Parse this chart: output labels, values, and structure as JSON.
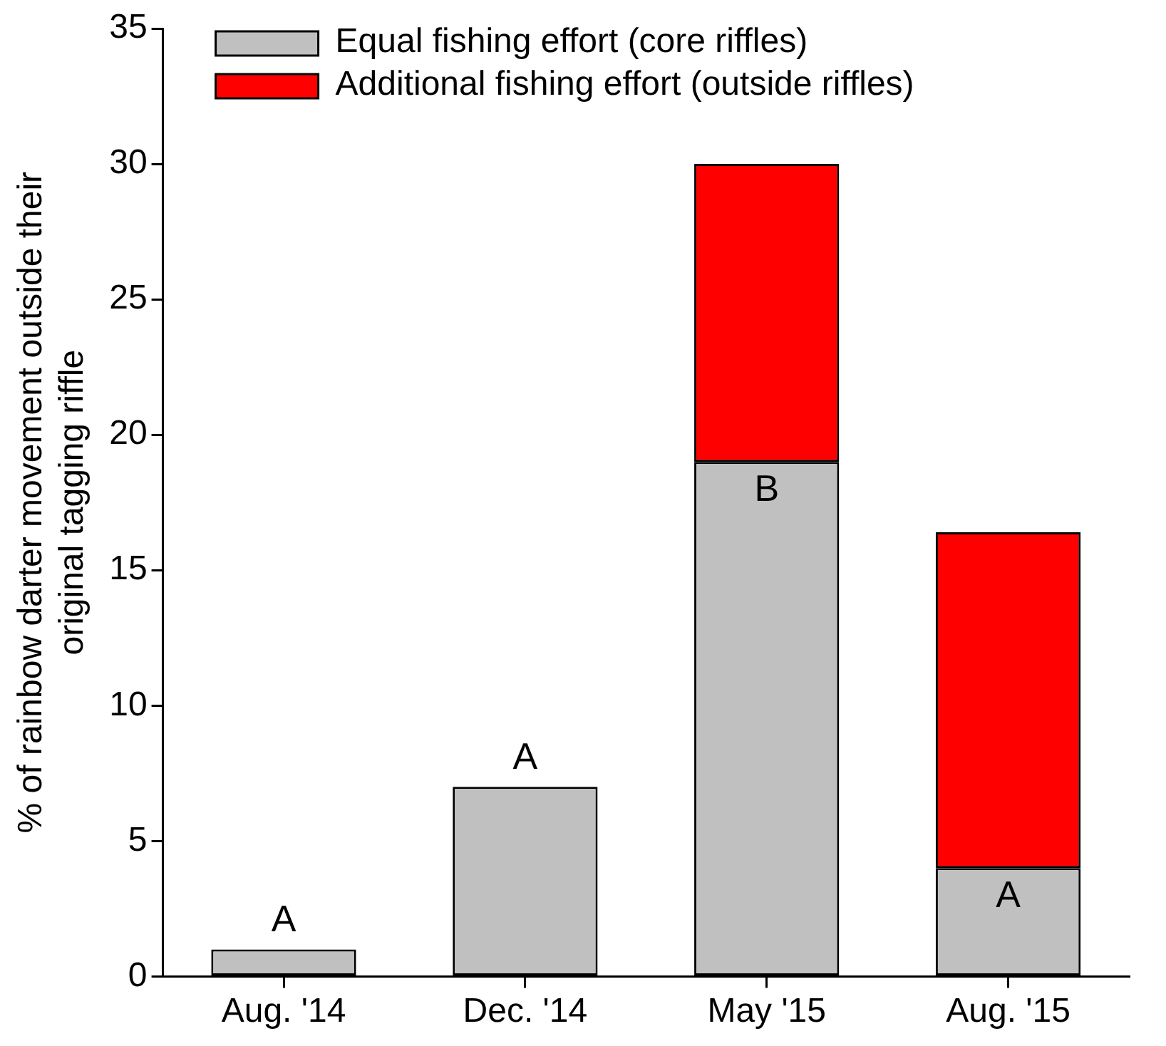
{
  "chart_data": {
    "type": "bar",
    "ylabel": "% of rainbow darter movement outside their original tagging riffle",
    "categories": [
      "Aug. '14",
      "Dec. '14",
      "May '15",
      "Aug. '15"
    ],
    "stacked": true,
    "ylim": [
      0,
      35
    ],
    "yticks": [
      0,
      5,
      10,
      15,
      20,
      25,
      30,
      35
    ],
    "grid": false,
    "legend": "top",
    "series": [
      {
        "name": "Equal fishing effort (core riffles)",
        "color": "#c0c0c0",
        "values": [
          1,
          7,
          19,
          4
        ]
      },
      {
        "name": "Additional fishing effort (outside riffles)",
        "color": "#ff0000",
        "values": [
          null,
          null,
          11,
          12.4
        ]
      }
    ],
    "annotations": [
      "A",
      "A",
      "B",
      "A"
    ]
  }
}
